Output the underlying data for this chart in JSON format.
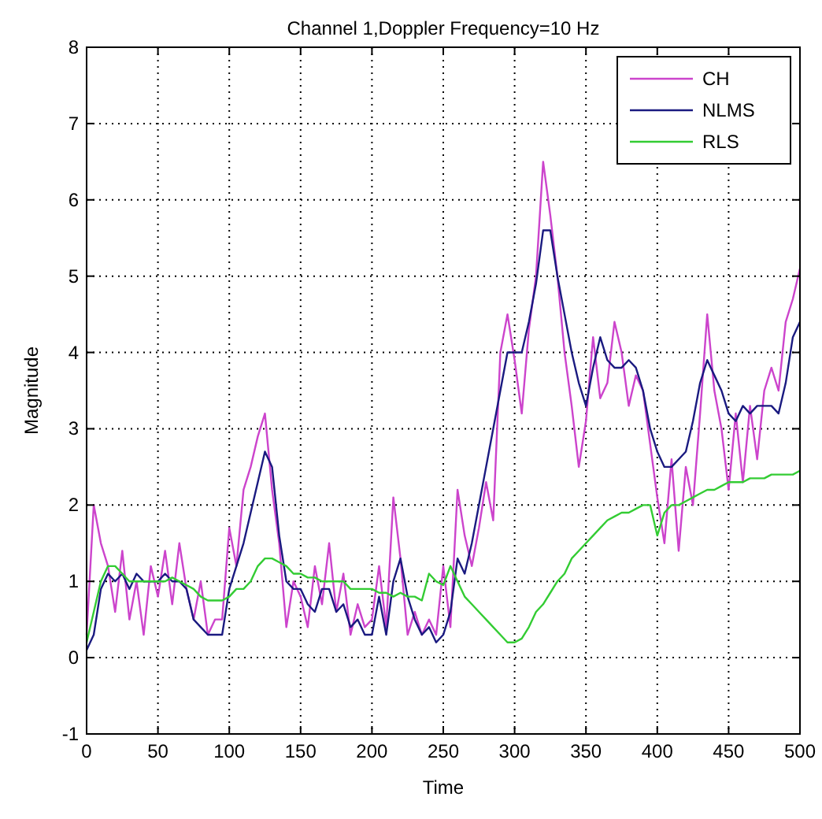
{
  "chart_data": {
    "type": "line",
    "title": "Channel 1,Doppler Frequency=10 Hz",
    "xlabel": "Time",
    "ylabel": "Magnitude",
    "x": [
      0,
      5,
      10,
      15,
      20,
      25,
      30,
      35,
      40,
      45,
      50,
      55,
      60,
      65,
      70,
      75,
      80,
      85,
      90,
      95,
      100,
      105,
      110,
      115,
      120,
      125,
      130,
      135,
      140,
      145,
      150,
      155,
      160,
      165,
      170,
      175,
      180,
      185,
      190,
      195,
      200,
      205,
      210,
      215,
      220,
      225,
      230,
      235,
      240,
      245,
      250,
      255,
      260,
      265,
      270,
      275,
      280,
      285,
      290,
      295,
      300,
      305,
      310,
      315,
      320,
      325,
      330,
      335,
      340,
      345,
      350,
      355,
      360,
      365,
      370,
      375,
      380,
      385,
      390,
      395,
      400,
      405,
      410,
      415,
      420,
      425,
      430,
      435,
      440,
      445,
      450,
      455,
      460,
      465,
      470,
      475,
      480,
      485,
      490,
      495,
      500
    ],
    "series": [
      {
        "name": "CH",
        "color": "#cc44cc",
        "values": [
          0.3,
          2.0,
          1.5,
          1.2,
          0.6,
          1.4,
          0.5,
          1.0,
          0.3,
          1.2,
          0.8,
          1.4,
          0.7,
          1.5,
          0.9,
          0.5,
          1.0,
          0.3,
          0.5,
          0.5,
          1.7,
          1.2,
          2.2,
          2.5,
          2.9,
          3.2,
          2.2,
          1.5,
          0.4,
          1.0,
          0.8,
          0.4,
          1.2,
          0.7,
          1.5,
          0.6,
          1.1,
          0.3,
          0.7,
          0.4,
          0.5,
          1.2,
          0.4,
          2.1,
          1.3,
          0.3,
          0.6,
          0.3,
          0.5,
          0.3,
          1.2,
          0.4,
          2.2,
          1.6,
          1.2,
          1.7,
          2.3,
          1.8,
          4.0,
          4.5,
          3.9,
          3.2,
          4.3,
          5.0,
          6.5,
          5.8,
          5.0,
          4.0,
          3.3,
          2.5,
          3.1,
          4.2,
          3.4,
          3.6,
          4.4,
          4.0,
          3.3,
          3.7,
          3.5,
          2.8,
          2.1,
          1.5,
          2.6,
          1.4,
          2.5,
          2.0,
          3.2,
          4.5,
          3.5,
          3.0,
          2.2,
          3.2,
          2.3,
          3.3,
          2.6,
          3.5,
          3.8,
          3.5,
          4.4,
          4.7,
          5.1
        ]
      },
      {
        "name": "NLMS",
        "color": "#1a1a80",
        "values": [
          0.1,
          0.3,
          0.9,
          1.1,
          1.0,
          1.1,
          0.9,
          1.1,
          1.0,
          1.0,
          1.0,
          1.1,
          1.0,
          1.0,
          0.9,
          0.5,
          0.4,
          0.3,
          0.3,
          0.3,
          0.9,
          1.2,
          1.5,
          1.9,
          2.3,
          2.7,
          2.5,
          1.6,
          1.0,
          0.9,
          0.9,
          0.7,
          0.6,
          0.9,
          0.9,
          0.6,
          0.7,
          0.4,
          0.5,
          0.3,
          0.3,
          0.8,
          0.3,
          1.0,
          1.3,
          0.8,
          0.5,
          0.3,
          0.4,
          0.2,
          0.3,
          0.6,
          1.3,
          1.1,
          1.5,
          2.0,
          2.5,
          3.0,
          3.5,
          4.0,
          4.0,
          4.0,
          4.4,
          4.9,
          5.6,
          5.6,
          5.0,
          4.5,
          4.0,
          3.6,
          3.3,
          3.8,
          4.2,
          3.9,
          3.8,
          3.8,
          3.9,
          3.8,
          3.5,
          3.0,
          2.7,
          2.5,
          2.5,
          2.6,
          2.7,
          3.1,
          3.6,
          3.9,
          3.7,
          3.5,
          3.2,
          3.1,
          3.3,
          3.2,
          3.3,
          3.3,
          3.3,
          3.2,
          3.6,
          4.2,
          4.4
        ]
      },
      {
        "name": "RLS",
        "color": "#33cc33",
        "values": [
          0.2,
          0.6,
          1.0,
          1.2,
          1.2,
          1.1,
          1.0,
          1.0,
          1.0,
          1.0,
          1.0,
          1.0,
          1.05,
          1.0,
          0.95,
          0.9,
          0.8,
          0.75,
          0.75,
          0.75,
          0.8,
          0.9,
          0.9,
          1.0,
          1.2,
          1.3,
          1.3,
          1.25,
          1.2,
          1.1,
          1.1,
          1.05,
          1.05,
          1.0,
          1.0,
          1.0,
          1.0,
          0.9,
          0.9,
          0.9,
          0.9,
          0.85,
          0.85,
          0.8,
          0.85,
          0.8,
          0.8,
          0.75,
          1.1,
          1.0,
          0.95,
          1.2,
          1.0,
          0.8,
          0.7,
          0.6,
          0.5,
          0.4,
          0.3,
          0.2,
          0.2,
          0.25,
          0.4,
          0.6,
          0.7,
          0.85,
          1.0,
          1.1,
          1.3,
          1.4,
          1.5,
          1.6,
          1.7,
          1.8,
          1.85,
          1.9,
          1.9,
          1.95,
          2.0,
          2.0,
          1.6,
          1.9,
          2.0,
          2.0,
          2.05,
          2.1,
          2.15,
          2.2,
          2.2,
          2.25,
          2.3,
          2.3,
          2.3,
          2.35,
          2.35,
          2.35,
          2.4,
          2.4,
          2.4,
          2.4,
          2.45
        ]
      }
    ],
    "xlim": [
      0,
      500
    ],
    "xticks": [
      0,
      50,
      100,
      150,
      200,
      250,
      300,
      350,
      400,
      450,
      500
    ],
    "ylim": [
      -1,
      8
    ],
    "yticks": [
      -1,
      0,
      1,
      2,
      3,
      4,
      5,
      6,
      7,
      8
    ],
    "grid": true,
    "legend": "top right"
  }
}
